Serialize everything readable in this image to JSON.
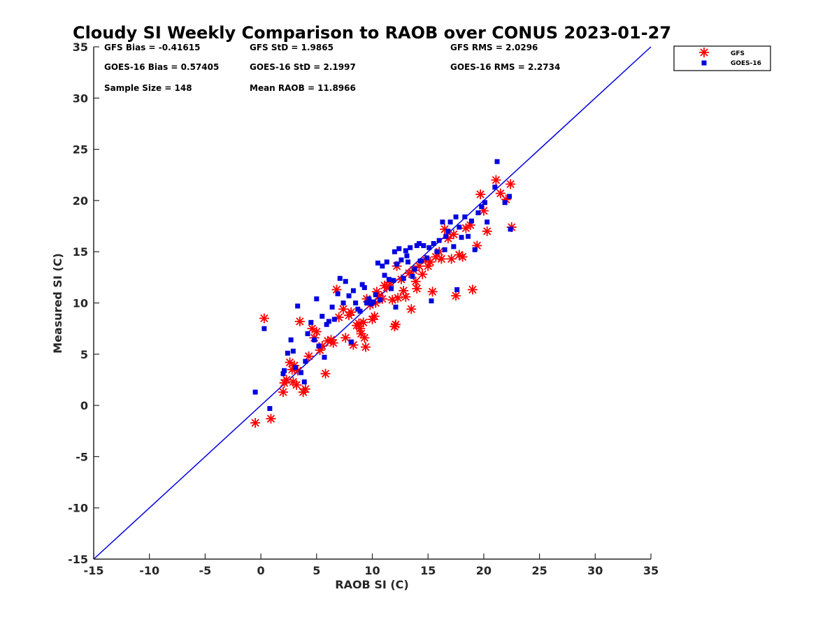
{
  "chart_data": {
    "type": "scatter",
    "title": "Cloudy SI Weekly Comparison to RAOB over CONUS 2023-01-27",
    "xlabel": "RAOB SI (C)",
    "ylabel": "Measured SI (C)",
    "xlim": [
      -15,
      35
    ],
    "ylim": [
      -15,
      35
    ],
    "xticks": [
      "-15",
      "-10",
      "-5",
      "0",
      "5",
      "10",
      "15",
      "20",
      "25",
      "30",
      "35"
    ],
    "yticks": [
      "-15",
      "-10",
      "-5",
      "0",
      "5",
      "10",
      "15",
      "20",
      "25",
      "30",
      "35"
    ],
    "grid": false,
    "legend_position": "top-right, outside plot",
    "reference_line": {
      "x": [
        -15,
        35
      ],
      "y": [
        -15,
        35
      ],
      "color": "#0000e0"
    },
    "stats": [
      "GFS Bias = -0.41615",
      "GFS StD = 1.9865",
      "GFS RMS = 2.0296",
      "GOES-16 Bias = 0.57405",
      "GOES-16 StD = 2.1997",
      "GOES-16 RMS = 2.2734",
      "Sample Size = 148",
      "Mean RAOB = 11.8966"
    ],
    "series": [
      {
        "name": "GFS",
        "marker": "asterisk",
        "color": "#ff0000",
        "x": [
          -0.5,
          0.3,
          0.9,
          2.0,
          2.1,
          2.3,
          2.6,
          2.8,
          2.9,
          3.0,
          3.2,
          3.3,
          3.5,
          3.8,
          4.0,
          4.3,
          4.6,
          4.8,
          5.0,
          5.3,
          5.5,
          5.8,
          6.0,
          6.3,
          6.5,
          6.8,
          7.0,
          7.4,
          7.6,
          7.9,
          8.1,
          8.3,
          8.6,
          8.9,
          9.0,
          9.2,
          9.4,
          9.5,
          9.8,
          10.0,
          10.2,
          10.4,
          10.6,
          10.9,
          11.1,
          11.3,
          11.6,
          11.8,
          12.0,
          12.1,
          12.3,
          12.6,
          12.8,
          13.0,
          13.3,
          13.5,
          13.7,
          14.0,
          14.2,
          14.5,
          14.8,
          15.0,
          15.2,
          15.4,
          15.7,
          16.0,
          16.2,
          16.5,
          16.8,
          17.1,
          17.3,
          17.5,
          17.8,
          18.1,
          18.4,
          18.8,
          19.0,
          19.4,
          19.7,
          20.0,
          20.3,
          21.1,
          21.5,
          22.0,
          22.4,
          22.5,
          8.8,
          9.3,
          10.3,
          12.2,
          13.9
        ],
        "y": [
          -1.7,
          8.5,
          -1.3,
          1.3,
          2.2,
          2.5,
          4.2,
          3.5,
          2.3,
          3.9,
          2.0,
          3.4,
          8.2,
          1.3,
          1.6,
          4.8,
          7.5,
          6.6,
          7.2,
          5.4,
          5.8,
          3.1,
          6.3,
          6.4,
          6.1,
          11.3,
          8.6,
          9.4,
          6.6,
          8.8,
          9.1,
          5.9,
          7.8,
          7.5,
          7.0,
          8.1,
          5.7,
          10.4,
          9.8,
          8.4,
          8.7,
          11.1,
          10.7,
          10.4,
          11.7,
          11.5,
          12.0,
          10.3,
          7.7,
          7.9,
          10.5,
          12.3,
          11.2,
          10.6,
          12.9,
          9.4,
          13.2,
          11.4,
          13.6,
          12.8,
          14.2,
          13.6,
          14.0,
          11.1,
          14.5,
          15.0,
          14.3,
          17.2,
          16.3,
          14.3,
          16.7,
          10.7,
          14.7,
          14.5,
          17.3,
          17.6,
          11.3,
          15.6,
          20.6,
          19.0,
          17.0,
          22.0,
          20.7,
          20.1,
          21.6,
          17.4,
          8.0,
          6.6,
          10.0,
          13.6,
          12.1
        ]
      },
      {
        "name": "GOES-16",
        "marker": "square",
        "color": "#0000e0",
        "x": [
          -0.5,
          0.3,
          0.8,
          2.0,
          2.1,
          2.4,
          2.7,
          2.9,
          3.1,
          3.3,
          3.6,
          3.9,
          4.0,
          4.2,
          4.5,
          4.8,
          5.0,
          5.2,
          5.5,
          5.7,
          5.9,
          6.1,
          6.4,
          6.6,
          6.9,
          7.1,
          7.4,
          7.6,
          7.9,
          8.1,
          8.3,
          8.5,
          8.7,
          8.9,
          9.1,
          9.3,
          9.5,
          9.7,
          9.9,
          10.1,
          10.3,
          10.5,
          10.7,
          10.9,
          11.1,
          11.3,
          11.5,
          11.7,
          11.9,
          12.0,
          12.2,
          12.4,
          12.6,
          12.8,
          13.0,
          13.2,
          13.4,
          13.6,
          13.8,
          14.0,
          14.2,
          14.4,
          14.6,
          14.9,
          15.1,
          15.3,
          15.5,
          15.8,
          16.0,
          16.3,
          16.5,
          16.8,
          17.0,
          17.3,
          17.5,
          17.8,
          18.0,
          18.3,
          18.6,
          18.9,
          19.2,
          19.5,
          19.8,
          20.1,
          20.3,
          21.0,
          21.2,
          21.9,
          22.3,
          22.4,
          12.1,
          13.1,
          14.3,
          16.6,
          17.6
        ],
        "y": [
          1.3,
          7.5,
          -0.3,
          3.1,
          3.4,
          5.1,
          6.4,
          5.3,
          3.7,
          9.7,
          3.2,
          2.3,
          4.3,
          7.0,
          8.1,
          6.4,
          10.4,
          5.8,
          8.7,
          4.7,
          7.9,
          8.2,
          9.6,
          8.4,
          10.9,
          12.4,
          10.0,
          12.1,
          10.7,
          6.2,
          11.2,
          10.0,
          9.4,
          9.2,
          11.8,
          11.5,
          10.0,
          10.4,
          9.9,
          10.1,
          10.8,
          13.9,
          10.3,
          13.6,
          12.7,
          14.0,
          12.3,
          11.4,
          12.2,
          15.0,
          13.8,
          15.3,
          14.2,
          12.4,
          15.1,
          14.0,
          15.4,
          12.6,
          13.3,
          15.6,
          15.8,
          14.1,
          15.6,
          14.4,
          15.4,
          10.2,
          15.8,
          15.0,
          16.1,
          17.9,
          15.2,
          17.0,
          17.9,
          15.5,
          18.4,
          17.4,
          16.4,
          18.4,
          16.5,
          18.0,
          15.2,
          18.8,
          19.4,
          19.8,
          17.9,
          21.3,
          23.8,
          19.8,
          20.4,
          17.2,
          9.6,
          14.6,
          14.1,
          16.5,
          11.3
        ]
      }
    ]
  }
}
